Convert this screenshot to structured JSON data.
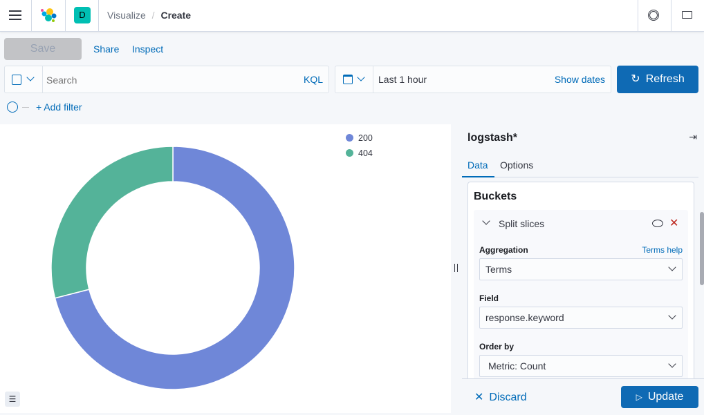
{
  "header": {
    "breadcrumbs": [
      "Visualize",
      "Create"
    ],
    "space_initial": "D",
    "space_color": "#00bfb3"
  },
  "toolbar": {
    "save_label": "Save",
    "share_label": "Share",
    "inspect_label": "Inspect"
  },
  "query": {
    "placeholder": "Search",
    "language": "KQL"
  },
  "time": {
    "range": "Last 1 hour",
    "show_dates": "Show dates",
    "refresh": "Refresh"
  },
  "filters": {
    "add_filter": "+ Add filter"
  },
  "chart_data": {
    "type": "pie",
    "donut": true,
    "categories": [
      "200",
      "404"
    ],
    "values": [
      71,
      29
    ],
    "colors": [
      "#6f87d8",
      "#54b399"
    ],
    "legend": "top-right"
  },
  "panel": {
    "index_pattern": "logstash*",
    "tabs": [
      "Data",
      "Options"
    ],
    "active_tab": "Data",
    "section": "Buckets",
    "bucket_title": "Split slices",
    "aggregation_label": "Aggregation",
    "aggregation_help": "Terms help",
    "aggregation_value": "Terms",
    "field_label": "Field",
    "field_value": "response.keyword",
    "order_label": "Order by",
    "order_value": "Metric: Count",
    "discard": "Discard",
    "update": "Update"
  }
}
